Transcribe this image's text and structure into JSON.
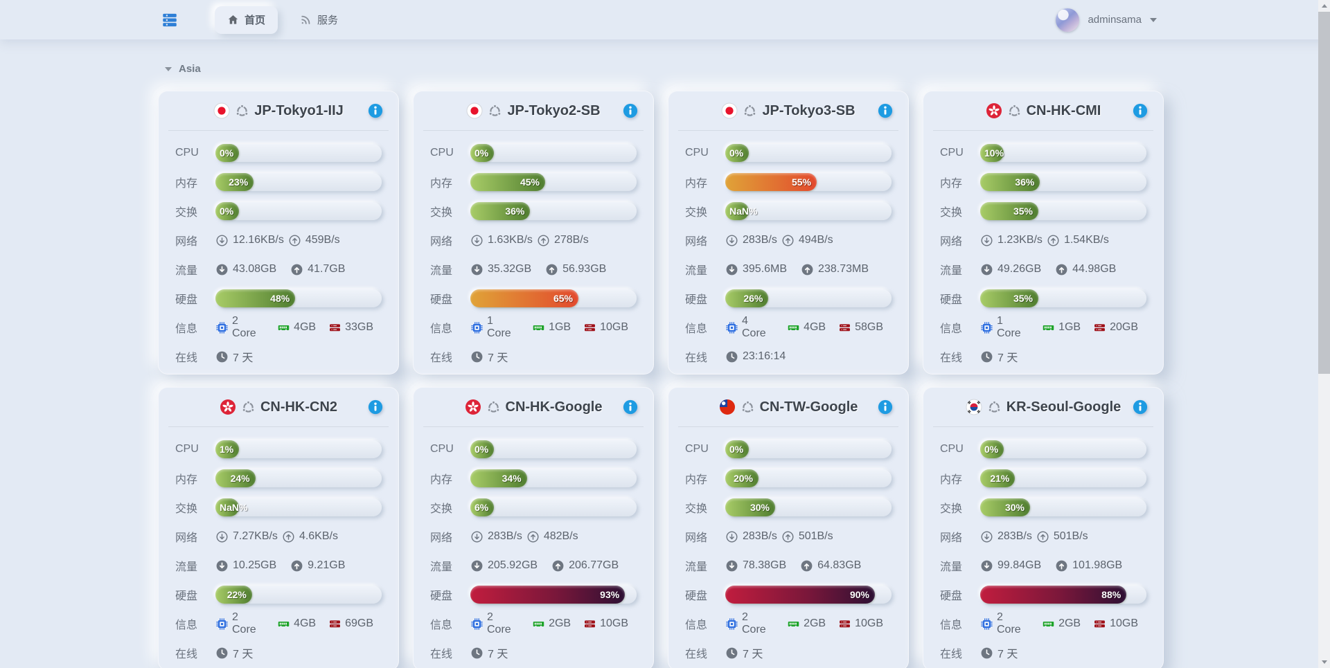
{
  "navbar": {
    "tabs": [
      {
        "label": "首页"
      },
      {
        "label": "服务"
      }
    ],
    "user": {
      "name": "adminsama"
    }
  },
  "section": {
    "title": "Asia"
  },
  "row_labels": {
    "cpu": "CPU",
    "memory": "内存",
    "swap": "交换",
    "network": "网络",
    "traffic": "流量",
    "disk": "硬盘",
    "info": "信息",
    "uptime": "在线"
  },
  "colors": {
    "page_bg": "#e3eaf4",
    "accent_blue": "#1e9be2",
    "bar_green": [
      "#a8cc67",
      "#4f7d2f"
    ],
    "bar_orange": [
      "#e0a338",
      "#e2492d"
    ],
    "bar_red": [
      "#c11d3e",
      "#2d1034"
    ]
  },
  "servers": [
    {
      "name": "JP-Tokyo1-IIJ",
      "flag": "jp",
      "cpu": {
        "pct": 0,
        "label": "0%",
        "level": "green"
      },
      "memory": {
        "pct": 23,
        "label": "23%",
        "level": "green"
      },
      "swap": {
        "pct": 0,
        "label": "0%",
        "level": "green"
      },
      "network": {
        "down": "12.16KB/s",
        "up": "459B/s"
      },
      "traffic": {
        "down": "43.08GB",
        "up": "41.7GB"
      },
      "disk": {
        "pct": 48,
        "label": "48%",
        "level": "green"
      },
      "info": {
        "cores": "2 Core",
        "ram": "4GB",
        "disk": "33GB"
      },
      "uptime": "7 天"
    },
    {
      "name": "JP-Tokyo2-SB",
      "flag": "jp",
      "cpu": {
        "pct": 0,
        "label": "0%",
        "level": "green"
      },
      "memory": {
        "pct": 45,
        "label": "45%",
        "level": "green"
      },
      "swap": {
        "pct": 36,
        "label": "36%",
        "level": "green"
      },
      "network": {
        "down": "1.63KB/s",
        "up": "278B/s"
      },
      "traffic": {
        "down": "35.32GB",
        "up": "56.93GB"
      },
      "disk": {
        "pct": 65,
        "label": "65%",
        "level": "orange"
      },
      "info": {
        "cores": "1 Core",
        "ram": "1GB",
        "disk": "10GB"
      },
      "uptime": "7 天"
    },
    {
      "name": "JP-Tokyo3-SB",
      "flag": "jp",
      "cpu": {
        "pct": 0,
        "label": "0%",
        "level": "green"
      },
      "memory": {
        "pct": 55,
        "label": "55%",
        "level": "orange"
      },
      "swap": {
        "pct": null,
        "label": "NaN%",
        "level": "green"
      },
      "network": {
        "down": "283B/s",
        "up": "494B/s"
      },
      "traffic": {
        "down": "395.6MB",
        "up": "238.73MB"
      },
      "disk": {
        "pct": 26,
        "label": "26%",
        "level": "green"
      },
      "info": {
        "cores": "4 Core",
        "ram": "4GB",
        "disk": "58GB"
      },
      "uptime": "23:16:14"
    },
    {
      "name": "CN-HK-CMI",
      "flag": "hk",
      "cpu": {
        "pct": 10,
        "label": "10%",
        "level": "green"
      },
      "memory": {
        "pct": 36,
        "label": "36%",
        "level": "green"
      },
      "swap": {
        "pct": 35,
        "label": "35%",
        "level": "green"
      },
      "network": {
        "down": "1.23KB/s",
        "up": "1.54KB/s"
      },
      "traffic": {
        "down": "49.26GB",
        "up": "44.98GB"
      },
      "disk": {
        "pct": 35,
        "label": "35%",
        "level": "green"
      },
      "info": {
        "cores": "1 Core",
        "ram": "1GB",
        "disk": "20GB"
      },
      "uptime": "7 天"
    },
    {
      "name": "CN-HK-CN2",
      "flag": "hk",
      "cpu": {
        "pct": 1,
        "label": "1%",
        "level": "green"
      },
      "memory": {
        "pct": 24,
        "label": "24%",
        "level": "green"
      },
      "swap": {
        "pct": null,
        "label": "NaN%",
        "level": "green"
      },
      "network": {
        "down": "7.27KB/s",
        "up": "4.6KB/s"
      },
      "traffic": {
        "down": "10.25GB",
        "up": "9.21GB"
      },
      "disk": {
        "pct": 22,
        "label": "22%",
        "level": "green"
      },
      "info": {
        "cores": "2 Core",
        "ram": "4GB",
        "disk": "69GB"
      },
      "uptime": "7 天"
    },
    {
      "name": "CN-HK-Google",
      "flag": "hk",
      "cpu": {
        "pct": 0,
        "label": "0%",
        "level": "green"
      },
      "memory": {
        "pct": 34,
        "label": "34%",
        "level": "green"
      },
      "swap": {
        "pct": 6,
        "label": "6%",
        "level": "green"
      },
      "network": {
        "down": "283B/s",
        "up": "482B/s"
      },
      "traffic": {
        "down": "205.92GB",
        "up": "206.77GB"
      },
      "disk": {
        "pct": 93,
        "label": "93%",
        "level": "red"
      },
      "info": {
        "cores": "2 Core",
        "ram": "2GB",
        "disk": "10GB"
      },
      "uptime": "7 天"
    },
    {
      "name": "CN-TW-Google",
      "flag": "tw",
      "cpu": {
        "pct": 0,
        "label": "0%",
        "level": "green"
      },
      "memory": {
        "pct": 20,
        "label": "20%",
        "level": "green"
      },
      "swap": {
        "pct": 30,
        "label": "30%",
        "level": "green"
      },
      "network": {
        "down": "283B/s",
        "up": "501B/s"
      },
      "traffic": {
        "down": "78.38GB",
        "up": "64.83GB"
      },
      "disk": {
        "pct": 90,
        "label": "90%",
        "level": "red"
      },
      "info": {
        "cores": "2 Core",
        "ram": "2GB",
        "disk": "10GB"
      },
      "uptime": "7 天"
    },
    {
      "name": "KR-Seoul-Google",
      "flag": "kr",
      "cpu": {
        "pct": 0,
        "label": "0%",
        "level": "green"
      },
      "memory": {
        "pct": 21,
        "label": "21%",
        "level": "green"
      },
      "swap": {
        "pct": 30,
        "label": "30%",
        "level": "green"
      },
      "network": {
        "down": "283B/s",
        "up": "501B/s"
      },
      "traffic": {
        "down": "99.84GB",
        "up": "101.98GB"
      },
      "disk": {
        "pct": 88,
        "label": "88%",
        "level": "red"
      },
      "info": {
        "cores": "2 Core",
        "ram": "2GB",
        "disk": "10GB"
      },
      "uptime": "7 天"
    }
  ]
}
